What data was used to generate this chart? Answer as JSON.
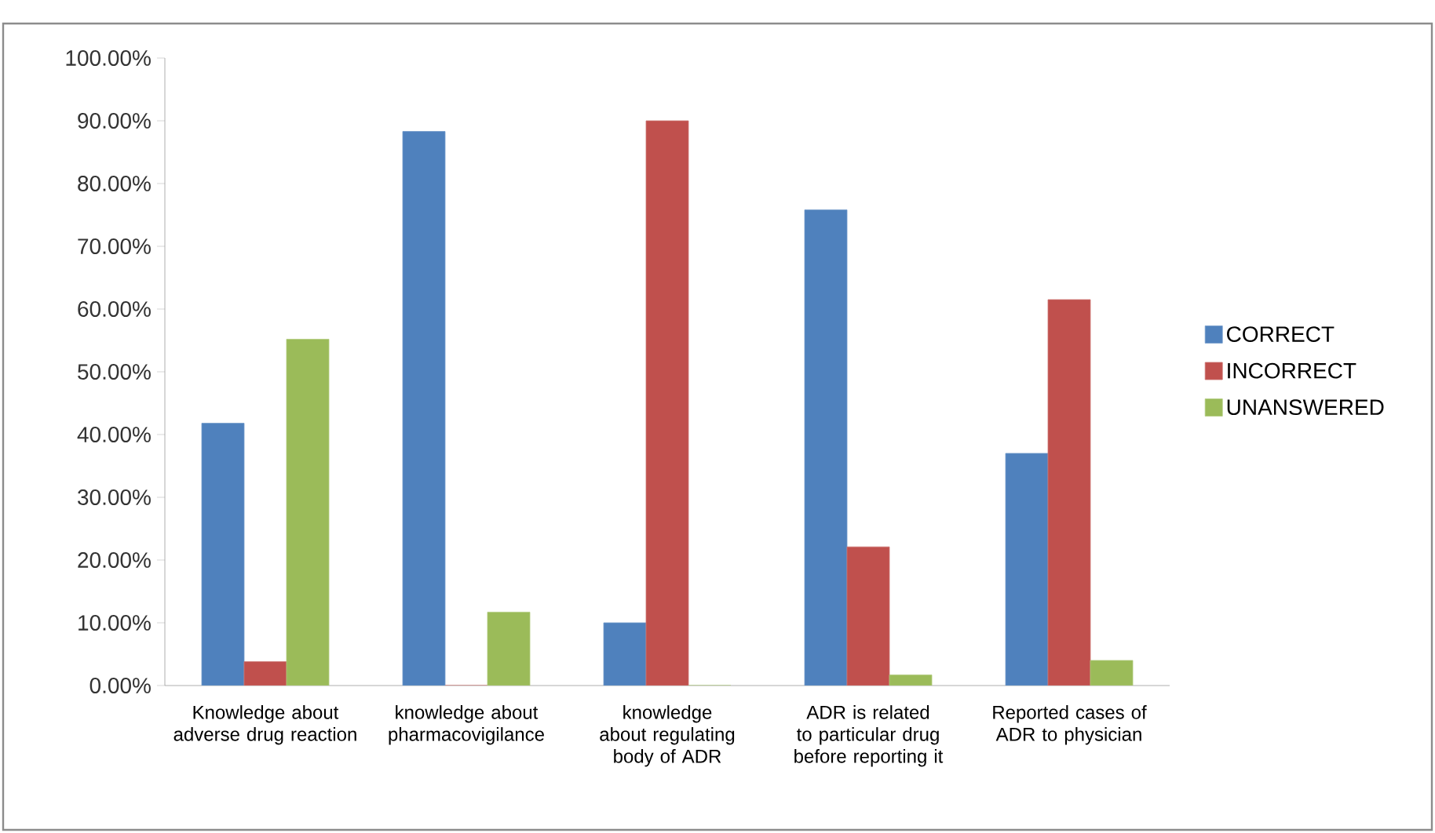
{
  "chart_data": {
    "type": "bar",
    "categories": [
      "Knowledge about adverse drug reaction",
      "knowledge about pharmacovigilance",
      "knowledge about regulating body of ADR",
      "ADR is related to particular drug before reporting it",
      "Reported cases of ADR to physician"
    ],
    "series": [
      {
        "name": "CORRECT",
        "color": "#4f81bd",
        "values": [
          41.8,
          88.3,
          10.0,
          75.8,
          37.0
        ]
      },
      {
        "name": "INCORRECT",
        "color": "#c0504d",
        "values": [
          3.8,
          0,
          90.0,
          22.1,
          61.5
        ]
      },
      {
        "name": "UNANSWERED",
        "color": "#9bbb59",
        "values": [
          55.2,
          11.7,
          0,
          1.7,
          4.0
        ]
      }
    ],
    "ylim": [
      0,
      100
    ],
    "yticks": [
      {
        "value": 0,
        "label": "0.00%"
      },
      {
        "value": 10,
        "label": "10.00%"
      },
      {
        "value": 20,
        "label": "20.00%"
      },
      {
        "value": 30,
        "label": "30.00%"
      },
      {
        "value": 40,
        "label": "40.00%"
      },
      {
        "value": 50,
        "label": "50.00%"
      },
      {
        "value": 60,
        "label": "60.00%"
      },
      {
        "value": 70,
        "label": "70.00%"
      },
      {
        "value": 80,
        "label": "80.00%"
      },
      {
        "value": 90,
        "label": "90.00%"
      },
      {
        "value": 100,
        "label": "100.00%"
      }
    ],
    "grid": false,
    "legend": "right"
  }
}
